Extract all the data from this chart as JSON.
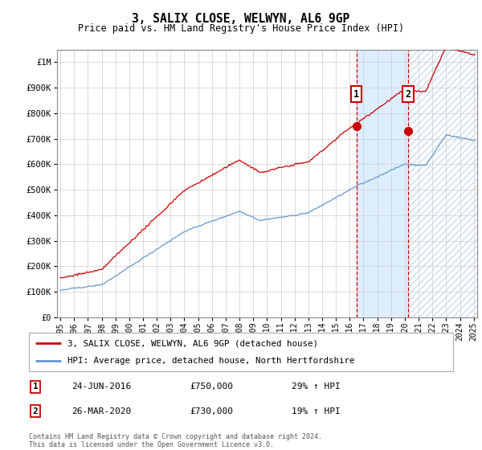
{
  "title": "3, SALIX CLOSE, WELWYN, AL6 9GP",
  "subtitle": "Price paid vs. HM Land Registry's House Price Index (HPI)",
  "legend_line1": "3, SALIX CLOSE, WELWYN, AL6 9GP (detached house)",
  "legend_line2": "HPI: Average price, detached house, North Hertfordshire",
  "transaction1_date": "24-JUN-2016",
  "transaction1_price": "£750,000",
  "transaction1_hpi": "29% ↑ HPI",
  "transaction1_year": 2016.48,
  "transaction1_value": 750000,
  "transaction2_date": "26-MAR-2020",
  "transaction2_price": "£730,000",
  "transaction2_hpi": "19% ↑ HPI",
  "transaction2_year": 2020.23,
  "transaction2_value": 730000,
  "footer": "Contains HM Land Registry data © Crown copyright and database right 2024.\nThis data is licensed under the Open Government Licence v3.0.",
  "red_color": "#cc0000",
  "blue_color": "#6699cc",
  "shade_color": "#ddeeff",
  "hatch_color": "#ccddee",
  "ylim": [
    0,
    1050000
  ],
  "yticks": [
    0,
    100000,
    200000,
    300000,
    400000,
    500000,
    600000,
    700000,
    800000,
    900000,
    1000000
  ],
  "ytick_labels": [
    "£0",
    "£100K",
    "£200K",
    "£300K",
    "£400K",
    "£500K",
    "£600K",
    "£700K",
    "£800K",
    "£900K",
    "£1M"
  ],
  "xlim_start": 1994.75,
  "xlim_end": 2025.25
}
